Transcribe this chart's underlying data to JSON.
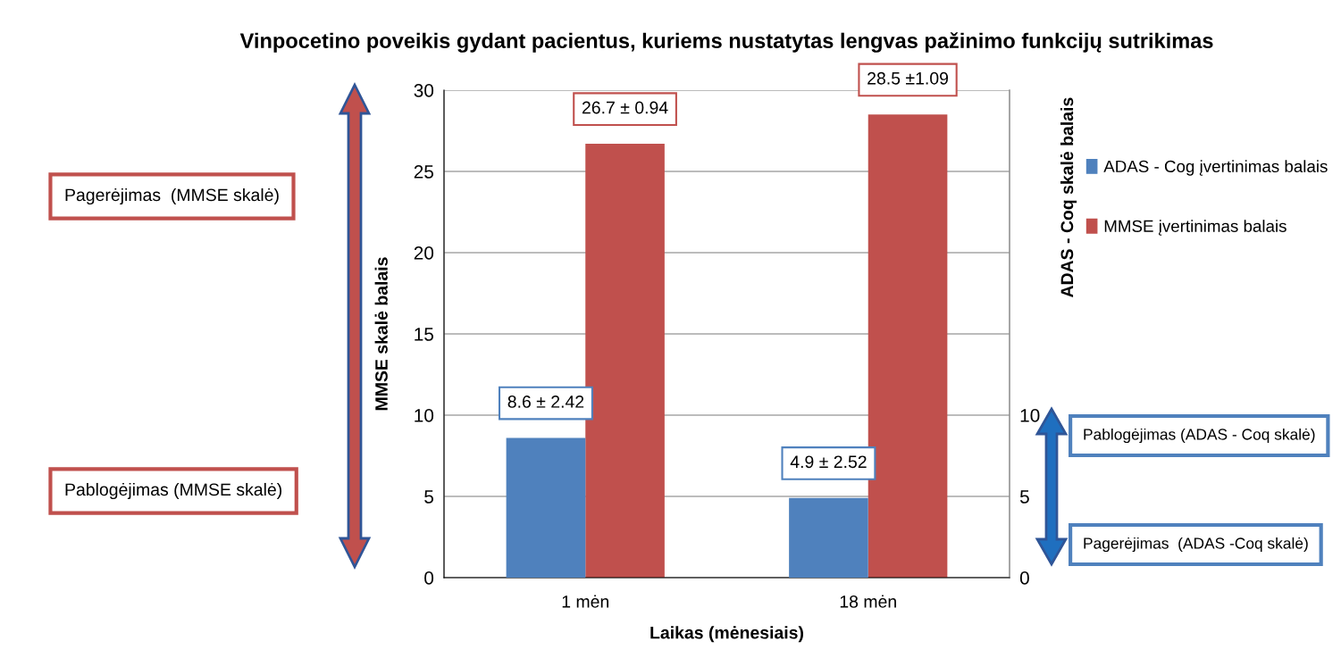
{
  "chart_data": {
    "type": "bar",
    "title": "Vinpocetino poveikis gydant pacientus, kuriems nustatytas lengvas pažinimo funkcijų sutrikimas",
    "xlabel": "Laikas (mėnesiais)",
    "ylabel": "MMSE skalė balais",
    "y2label": "ADAS - Coq skalė balais",
    "categories": [
      "1 mėn",
      "18 mėn"
    ],
    "series": [
      {
        "name": "ADAS - Cog įvertinimas balais",
        "color": "#4f81bd",
        "values": [
          8.6,
          4.9
        ],
        "axis": "y2",
        "value_labels": [
          "8.6 ± 2.42",
          "4.9 ± 2.52"
        ]
      },
      {
        "name": "MMSE įvertinimas balais",
        "color": "#c0504d",
        "values": [
          26.7,
          28.5
        ],
        "value_labels": [
          "26.7 ± 0.94",
          "28.5 ±1.09"
        ]
      }
    ],
    "ylim": [
      0,
      30
    ],
    "yticks": [
      0,
      5,
      10,
      15,
      20,
      25,
      30
    ],
    "y2lim": [
      0,
      30
    ],
    "y2ticks": [
      0,
      5,
      10
    ],
    "grid": "y",
    "legend": "right",
    "annotations": [
      "Pagerėjimas  (MMSE skalė)",
      "Pablogėjimas (MMSE skalė)",
      "Pablogėjimas (ADAS - Coq skalė)",
      "Pagerėjimas  (ADAS -Coq skalė)"
    ]
  }
}
